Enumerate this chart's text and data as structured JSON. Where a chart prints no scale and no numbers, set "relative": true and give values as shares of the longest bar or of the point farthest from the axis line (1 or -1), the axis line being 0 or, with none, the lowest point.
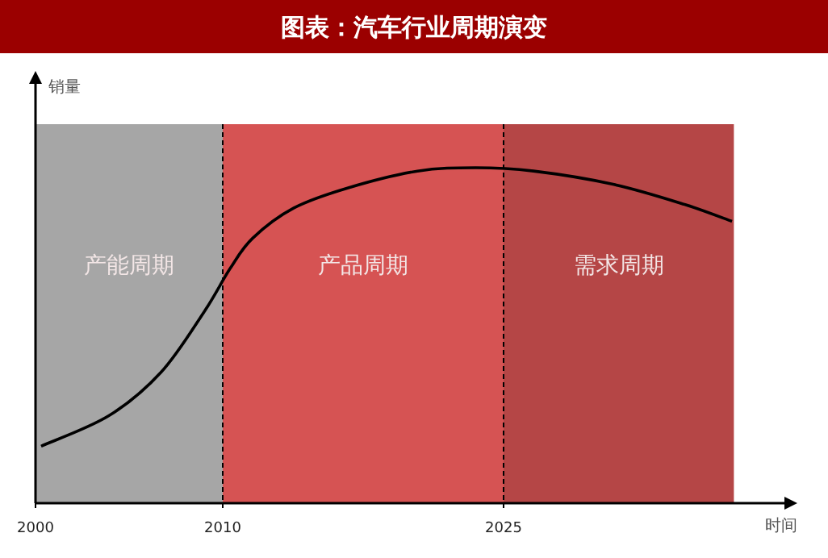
{
  "chart_data": {
    "type": "line",
    "title": "图表：汽车行业周期演变",
    "xlabel": "时间",
    "ylabel": "销量",
    "relative": true,
    "color": "#000000",
    "x": [
      2000.3,
      2003.9,
      2006.7,
      2009.0,
      2010.4,
      2011.6,
      2013.8,
      2016.7,
      2020.4,
      2023.5,
      2026.6,
      2030.9,
      2034.7,
      2037.2
    ],
    "values": [
      0.17,
      0.26,
      0.39,
      0.57,
      0.7,
      0.79,
      0.88,
      0.94,
      0.99,
      1.0,
      0.99,
      0.95,
      0.89,
      0.84
    ],
    "xlim": [
      2000,
      2040
    ],
    "xticks": [
      2000,
      2010,
      2025
    ],
    "bands": [
      {
        "axis": "x",
        "from": 2000,
        "to": 2010,
        "label": "产能周期",
        "color": "#a6a6a6"
      },
      {
        "axis": "x",
        "from": 2010,
        "to": 2025,
        "label": "产品周期",
        "color": "#d65353"
      },
      {
        "axis": "x",
        "from": 2025,
        "to": 2037.3,
        "label": "需求周期",
        "color": "#b54646"
      }
    ],
    "ref_lines": [
      {
        "axis": "x",
        "value": 2010,
        "line_style": "dashed",
        "color": "#000000"
      },
      {
        "axis": "x",
        "value": 2025,
        "line_style": "dashed",
        "color": "#000000"
      }
    ]
  }
}
